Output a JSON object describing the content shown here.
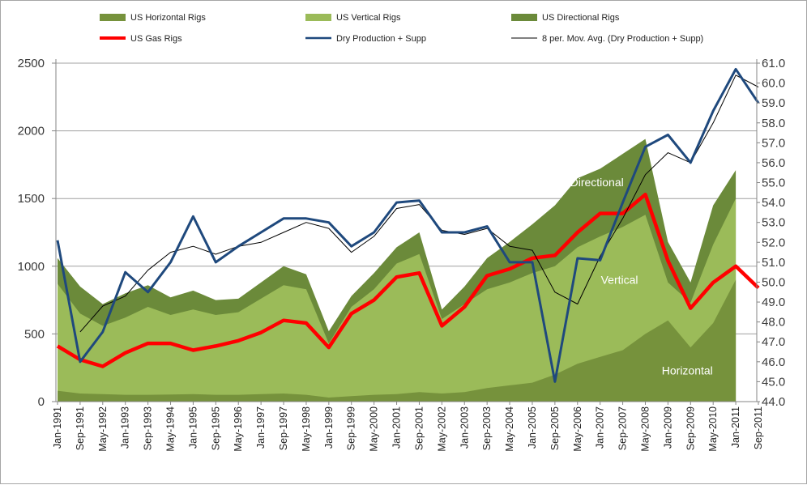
{
  "chart_data": {
    "type": "area",
    "x": [
      "Jan-1991",
      "Sep-1991",
      "May-1992",
      "Jan-1993",
      "Sep-1993",
      "May-1994",
      "Jan-1995",
      "Sep-1995",
      "May-1996",
      "Jan-1997",
      "Sep-1997",
      "May-1998",
      "Jan-1999",
      "Sep-1999",
      "May-2000",
      "Jan-2001",
      "Sep-2001",
      "May-2002",
      "Jan-2003",
      "Sep-2003",
      "May-2004",
      "Jan-2005",
      "Sep-2005",
      "May-2006",
      "Jan-2007",
      "Sep-2007",
      "May-2008",
      "Jan-2009",
      "Sep-2009",
      "May-2010",
      "Jan-2011",
      "Sep-2011"
    ],
    "y_left": {
      "min": 0,
      "max": 2500,
      "ticks": [
        "0",
        "500",
        "1000",
        "1500",
        "2000",
        "2500"
      ]
    },
    "y_right": {
      "min": 44.0,
      "max": 61.0,
      "ticks": [
        "44.0",
        "45.0",
        "46.0",
        "47.0",
        "48.0",
        "49.0",
        "50.0",
        "51.0",
        "52.0",
        "53.0",
        "54.0",
        "55.0",
        "56.0",
        "57.0",
        "58.0",
        "59.0",
        "60.0",
        "61.0"
      ]
    },
    "grid": "horizontal",
    "legend_position": "top",
    "legend": [
      {
        "label": "US Horizontal  Rigs",
        "color": "#76923c",
        "kind": "area"
      },
      {
        "label": "US Vertical Rigs",
        "color": "#9bbb59",
        "kind": "area"
      },
      {
        "label": "US Directional  Rigs",
        "color": "#6b8a3a",
        "kind": "area"
      },
      {
        "label": "US Gas Rigs",
        "color": "#ff0000",
        "kind": "line"
      },
      {
        "label": "Dry Production  + Supp",
        "color": "#1f497d",
        "kind": "line"
      },
      {
        "label": "8 per. Mov. Avg. (Dry Production  + Supp)",
        "color": "#000000",
        "kind": "line"
      }
    ],
    "annotations": [
      {
        "text": "Directional",
        "x": "Jan-2007",
        "y": 1590
      },
      {
        "text": "Vertical",
        "x": "Sep-2007",
        "y": 870
      },
      {
        "text": "Horizontal",
        "x": "Sep-2009",
        "y": 200
      }
    ],
    "series": [
      {
        "name": "US Horizontal  Rigs",
        "axis": "left",
        "values": [
          80,
          60,
          55,
          50,
          50,
          52,
          55,
          50,
          50,
          55,
          60,
          50,
          30,
          40,
          50,
          55,
          70,
          60,
          70,
          100,
          120,
          140,
          200,
          280,
          330,
          380,
          500,
          600,
          400,
          580,
          900,
          null
        ]
      },
      {
        "name": "US Vertical Rigs",
        "axis": "left",
        "values": [
          870,
          650,
          560,
          620,
          700,
          640,
          680,
          640,
          660,
          760,
          860,
          830,
          430,
          700,
          830,
          1020,
          1090,
          610,
          720,
          830,
          880,
          950,
          1000,
          1140,
          1220,
          1290,
          1380,
          880,
          730,
          1160,
          1500,
          null
        ]
      },
      {
        "name": "US Directional  Rigs",
        "axis": "left",
        "values": [
          1060,
          850,
          720,
          800,
          860,
          770,
          820,
          750,
          760,
          880,
          1000,
          940,
          520,
          780,
          950,
          1140,
          1250,
          680,
          850,
          1060,
          1180,
          1310,
          1450,
          1650,
          1720,
          1830,
          1940,
          1180,
          880,
          1450,
          1710,
          null
        ]
      },
      {
        "name": "US Gas Rigs",
        "axis": "left",
        "values": [
          410,
          310,
          260,
          360,
          430,
          430,
          380,
          410,
          450,
          510,
          600,
          580,
          400,
          650,
          750,
          920,
          950,
          560,
          700,
          930,
          980,
          1060,
          1080,
          1250,
          1390,
          1390,
          1530,
          1040,
          690,
          880,
          1000,
          840
        ]
      },
      {
        "name": "Dry Production  + Supp",
        "axis": "right",
        "values": [
          52.1,
          46.0,
          47.5,
          50.5,
          49.5,
          51.0,
          53.3,
          51.0,
          51.8,
          52.5,
          53.2,
          53.2,
          53.0,
          51.8,
          52.5,
          54.0,
          54.1,
          52.5,
          52.5,
          52.8,
          51.0,
          51.0,
          45.0,
          51.2,
          51.1,
          54.0,
          56.8,
          57.4,
          56.0,
          58.6,
          60.7,
          59.0
        ]
      },
      {
        "name": "8 per. Mov. Avg. (Dry Production  + Supp)",
        "axis": "right",
        "values": [
          null,
          47.5,
          48.8,
          49.3,
          50.6,
          51.5,
          51.8,
          51.4,
          51.8,
          52.0,
          52.5,
          53.0,
          52.7,
          51.5,
          52.3,
          53.7,
          53.9,
          52.6,
          52.4,
          52.7,
          51.8,
          51.6,
          49.5,
          48.9,
          51.3,
          53.2,
          55.4,
          56.5,
          56.0,
          58.0,
          60.4,
          59.8
        ]
      }
    ]
  }
}
